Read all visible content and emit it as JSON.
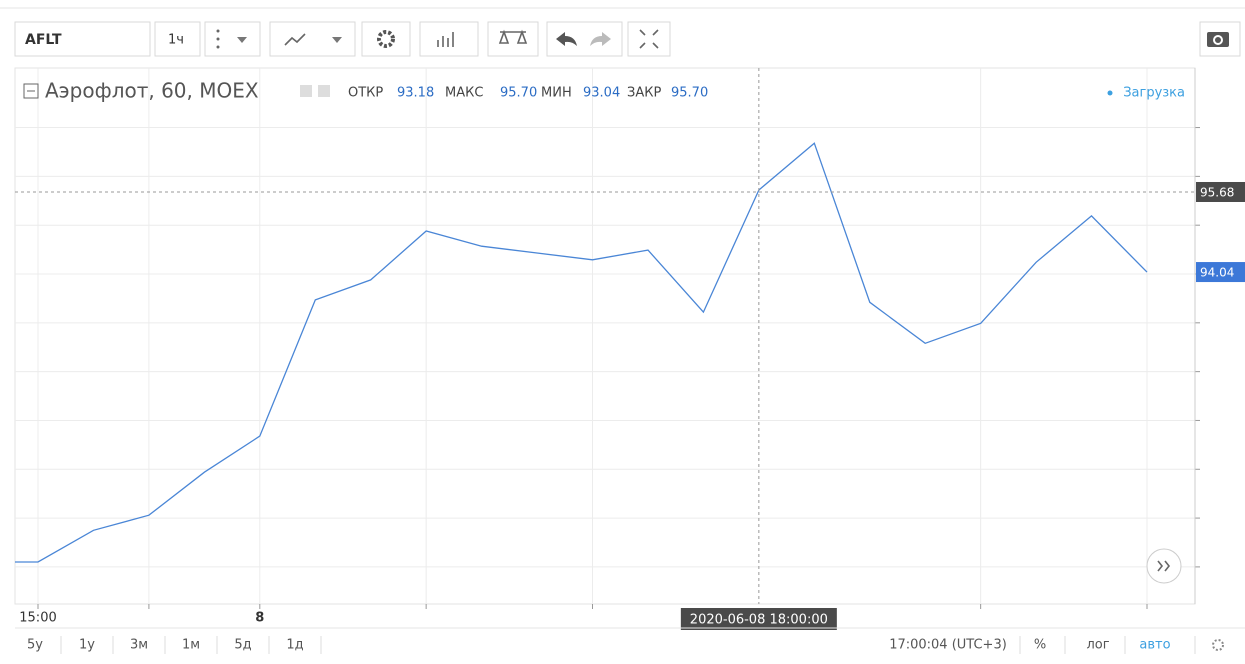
{
  "toolbar": {
    "symbol": "AFLT",
    "interval": "1ч"
  },
  "legend": {
    "title": "Аэрофлот, 60, MOEX",
    "open_label": "ОТКР",
    "open": {
      "value": 93.18,
      "label": "93.18"
    },
    "high_label": "МАКС",
    "high": {
      "value": 95.7,
      "label": "95.70"
    },
    "low_label": "МИН",
    "low": {
      "value": 93.04,
      "label": "93.04"
    },
    "close_label": "ЗАКР",
    "close": {
      "value": 95.7,
      "label": "95.70"
    },
    "status": "Загрузка"
  },
  "chart_data": {
    "type": "line",
    "categories": [
      null,
      "15:00",
      null,
      null,
      null,
      "8",
      null,
      null,
      null,
      null,
      null,
      null,
      null,
      null,
      null,
      null,
      null,
      null,
      null,
      null,
      null,
      null
    ],
    "series": [
      {
        "color": "#4a86d6",
        "values": [
          88.1,
          88.1,
          88.75,
          89.06,
          89.94,
          90.68,
          93.47,
          93.88,
          94.88,
          94.57,
          94.43,
          94.29,
          94.49,
          93.22,
          95.72,
          96.68,
          93.42,
          92.58,
          92.99,
          94.24,
          95.19,
          94.04
        ]
      }
    ],
    "ylim": [
      87.24,
      98.22
    ],
    "yticks": [
      88,
      89,
      90,
      91,
      92,
      93,
      94,
      95,
      96,
      97
    ],
    "grid": true,
    "crosshair": {
      "x_label": "2020-06-08 18:00:00",
      "y_value": 95.68
    }
  },
  "footer": {
    "ranges": [
      "5y",
      "1y",
      "3м",
      "1м",
      "5д",
      "1д"
    ],
    "clock": "17:00:04 (UTC+3)",
    "percent": "%",
    "log": "лог",
    "auto": "авто"
  }
}
